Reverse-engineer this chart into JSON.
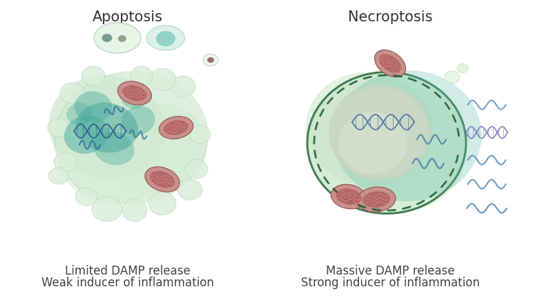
{
  "title_left": "Apoptosis",
  "title_right": "Necroptosis",
  "label_left_1": "Limited DAMP release",
  "label_left_2": "Weak inducer of inflammation",
  "label_right_1": "Massive DAMP release",
  "label_right_2": "Strong inducer of inflammation",
  "bg_color": "#ffffff",
  "title_fontsize": 15,
  "label_fontsize": 12,
  "mito_outer": "#c49090",
  "mito_inner": "#a85858",
  "dna_color": "#4a7faa",
  "dna_dark": "#3a5a8a"
}
